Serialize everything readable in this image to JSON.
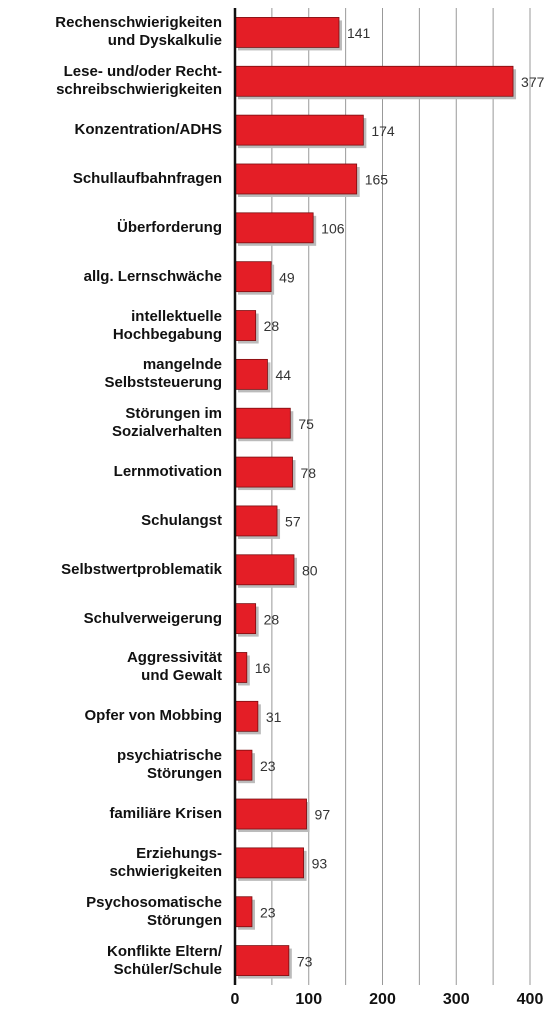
{
  "chart_data": {
    "type": "bar",
    "orientation": "horizontal",
    "categories": [
      "Rechenschwierigkeiten\nund Dyskalkulie",
      "Lese- und/oder Recht-\nschreibschwierigkeiten",
      "Konzentration/ADHS",
      "Schullaufbahnfragen",
      "Überforderung",
      "allg. Lernschwäche",
      "intellektuelle\nHochbegabung",
      "mangelnde\nSelbststeuerung",
      "Störungen im\nSozialverhalten",
      "Lernmotivation",
      "Schulangst",
      "Selbstwertproblematik",
      "Schulverweigerung",
      "Aggressivität\nund Gewalt",
      "Opfer von Mobbing",
      "psychiatrische\nStörungen",
      "familiäre Krisen",
      "Erziehungs-\nschwierigkeiten",
      "Psychosomatische\nStörungen",
      "Konflikte Eltern/\nSchüler/Schule"
    ],
    "values": [
      141,
      377,
      174,
      165,
      106,
      49,
      28,
      44,
      75,
      78,
      57,
      80,
      28,
      16,
      31,
      23,
      97,
      93,
      23,
      73
    ],
    "color": "#e41e26",
    "xlim": [
      0,
      400
    ],
    "xticks": [
      0,
      100,
      200,
      300,
      400
    ],
    "grid": true
  }
}
